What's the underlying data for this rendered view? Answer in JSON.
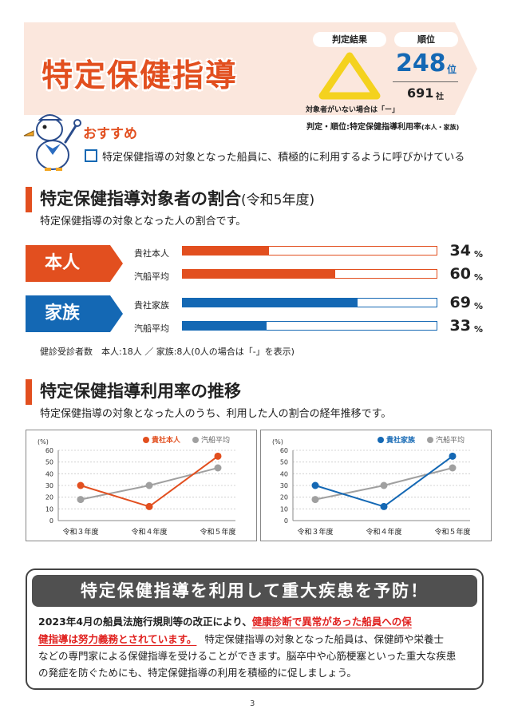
{
  "header": {
    "title": "特定保健指導",
    "result_label": "判定結果",
    "rank_label": "順位",
    "rank_value": "248",
    "rank_unit": "位",
    "rank_total": "691",
    "rank_total_unit": "社",
    "note_no_target": "対象者がいない場合は「ー」",
    "note_criteria": "判定・順位:特定保健指導利用率",
    "note_criteria_sub": "(本人・家族)",
    "judge_symbol": "triangle",
    "judge_color": "#f4d21e"
  },
  "recommend": {
    "heading": "おすすめ",
    "text": "特定保健指導の対象となった船員に、積極的に利用するように呼びかけている"
  },
  "ratio_section": {
    "title": "特定保健指導対象者の割合",
    "title_suffix": "(令和5年度)",
    "subtitle": "特定保健指導の対象となった人の割合です。",
    "groups": [
      {
        "tag": "本人",
        "color": "#e24f1f",
        "rows": [
          {
            "label": "貴社本人",
            "value": 34,
            "unit": "%"
          },
          {
            "label": "汽船平均",
            "value": 60,
            "unit": "%"
          }
        ]
      },
      {
        "tag": "家族",
        "color": "#1468b4",
        "rows": [
          {
            "label": "貴社家族",
            "value": 69,
            "unit": "%"
          },
          {
            "label": "汽船平均",
            "value": 33,
            "unit": "%"
          }
        ]
      }
    ],
    "examinees": "健診受診者数　本人:18人 ／ 家族:8人(0人の場合は「-」を表示)"
  },
  "trend_section": {
    "title": "特定保健指導利用率の推移",
    "subtitle": "特定保健指導の対象となった人のうち、利用した人の割合の経年推移です。"
  },
  "chart_data": [
    {
      "type": "line",
      "ylabel": "(%)",
      "ylim": [
        0,
        60
      ],
      "yticks": [
        0,
        10,
        20,
        30,
        40,
        50,
        60
      ],
      "categories": [
        "令和３年度",
        "令和４年度",
        "令和５年度"
      ],
      "legend_position": "top-right",
      "series": [
        {
          "name": "貴社本人",
          "color": "#e24f1f",
          "values": [
            30,
            12,
            55
          ]
        },
        {
          "name": "汽船平均",
          "color": "#a0a0a0",
          "values": [
            18,
            30,
            45
          ]
        }
      ]
    },
    {
      "type": "line",
      "ylabel": "(%)",
      "ylim": [
        0,
        60
      ],
      "yticks": [
        0,
        10,
        20,
        30,
        40,
        50,
        60
      ],
      "categories": [
        "令和３年度",
        "令和４年度",
        "令和５年度"
      ],
      "legend_position": "top-right",
      "series": [
        {
          "name": "貴社家族",
          "color": "#1468b4",
          "values": [
            30,
            12,
            55
          ]
        },
        {
          "name": "汽船平均",
          "color": "#a0a0a0",
          "values": [
            18,
            30,
            45
          ]
        }
      ]
    }
  ],
  "prevent": {
    "title": "特定保健指導を利用して重大疾患を予防！",
    "line1_a": "2023年4月の船員法施行規則等の改正により、",
    "line1_b": "健康診断で異常があった船員への保",
    "line2_a": "健指導は努力義務とされています。",
    "line2_b": "特定保健指導の対象となった船員は、保健師や栄養士",
    "line3": "などの専門家による保健指導を受けることができます。脳卒中や心筋梗塞といった重大な疾患",
    "line4": "の発症を防ぐためにも、特定保健指導の利用を積極的に促しましょう。"
  },
  "page_number": "3"
}
